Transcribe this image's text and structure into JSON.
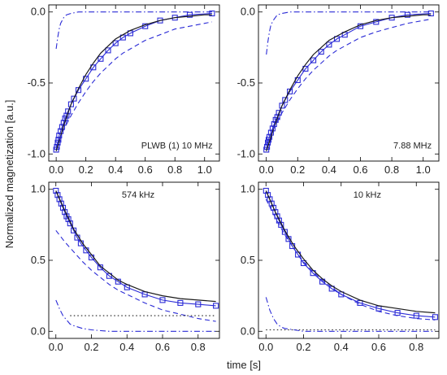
{
  "figure": {
    "ylabel": "Normalized magnetization [a.u.]",
    "xlabel": "time [s]",
    "colors": {
      "data": "#2b2bd6",
      "model": "#1a1a1a",
      "frame": "#000000"
    }
  },
  "chart_data": [
    {
      "type": "line",
      "annotation": "PLWB (1)  10 MHz",
      "xlim": [
        -0.05,
        1.1
      ],
      "ylim": [
        -1.05,
        0.05
      ],
      "xticks": [
        0.0,
        0.2,
        0.4,
        0.6,
        0.8,
        1.0
      ],
      "yticks": [
        -1.0,
        -0.5,
        0.0
      ],
      "grid": false,
      "series": [
        {
          "style": "markers-line",
          "color": "#2b2bd6",
          "x": [
            0.0,
            0.005,
            0.01,
            0.015,
            0.02,
            0.03,
            0.04,
            0.05,
            0.06,
            0.07,
            0.08,
            0.1,
            0.12,
            0.15,
            0.2,
            0.25,
            0.3,
            0.35,
            0.4,
            0.45,
            0.5,
            0.6,
            0.7,
            0.8,
            0.9,
            1.05
          ],
          "y": [
            -0.97,
            -0.95,
            -0.92,
            -0.9,
            -0.87,
            -0.84,
            -0.81,
            -0.78,
            -0.75,
            -0.73,
            -0.7,
            -0.65,
            -0.61,
            -0.55,
            -0.47,
            -0.39,
            -0.33,
            -0.27,
            -0.22,
            -0.18,
            -0.15,
            -0.1,
            -0.06,
            -0.04,
            -0.02,
            -0.01
          ]
        },
        {
          "style": "solid",
          "color": "#1a1a1a",
          "x": [
            0.0,
            0.05,
            0.1,
            0.15,
            0.2,
            0.25,
            0.3,
            0.35,
            0.4,
            0.45,
            0.5,
            0.6,
            0.7,
            0.8,
            0.9,
            1.0,
            1.05
          ],
          "y": [
            -0.98,
            -0.8,
            -0.65,
            -0.54,
            -0.44,
            -0.36,
            -0.29,
            -0.24,
            -0.19,
            -0.16,
            -0.13,
            -0.09,
            -0.06,
            -0.04,
            -0.03,
            -0.02,
            -0.02
          ]
        },
        {
          "style": "dashed",
          "color": "#2b2bd6",
          "x": [
            0.0,
            0.05,
            0.1,
            0.15,
            0.2,
            0.25,
            0.3,
            0.35,
            0.4,
            0.45,
            0.5,
            0.6,
            0.7,
            0.8,
            0.9,
            1.0,
            1.05
          ],
          "y": [
            -0.95,
            -0.83,
            -0.73,
            -0.64,
            -0.56,
            -0.49,
            -0.43,
            -0.38,
            -0.33,
            -0.29,
            -0.26,
            -0.2,
            -0.16,
            -0.12,
            -0.1,
            -0.08,
            -0.07
          ]
        },
        {
          "style": "dashdot",
          "color": "#2b2bd6",
          "x": [
            0.0,
            0.01,
            0.02,
            0.03,
            0.05,
            0.07,
            0.1,
            0.15,
            0.2,
            0.3,
            0.5,
            0.7,
            0.9,
            1.05
          ],
          "y": [
            -0.26,
            -0.18,
            -0.12,
            -0.08,
            -0.04,
            -0.02,
            -0.01,
            0.0,
            0.0,
            0.0,
            0.0,
            0.0,
            0.0,
            0.0
          ]
        }
      ]
    },
    {
      "type": "line",
      "annotation": "7.88 MHz",
      "xlim": [
        -0.05,
        1.1
      ],
      "ylim": [
        -1.05,
        0.05
      ],
      "xticks": [
        0.0,
        0.2,
        0.4,
        0.6,
        0.8,
        1.0
      ],
      "yticks": [
        -1.0,
        -0.5,
        0.0
      ],
      "grid": false,
      "series": [
        {
          "style": "markers-line",
          "color": "#2b2bd6",
          "x": [
            0.0,
            0.005,
            0.01,
            0.015,
            0.02,
            0.03,
            0.04,
            0.05,
            0.06,
            0.07,
            0.08,
            0.1,
            0.12,
            0.15,
            0.2,
            0.25,
            0.3,
            0.35,
            0.4,
            0.45,
            0.5,
            0.6,
            0.7,
            0.8,
            0.9,
            1.05
          ],
          "y": [
            -0.97,
            -0.95,
            -0.92,
            -0.9,
            -0.88,
            -0.85,
            -0.82,
            -0.79,
            -0.76,
            -0.74,
            -0.71,
            -0.66,
            -0.62,
            -0.56,
            -0.48,
            -0.4,
            -0.34,
            -0.28,
            -0.23,
            -0.19,
            -0.16,
            -0.1,
            -0.07,
            -0.04,
            -0.02,
            -0.01
          ]
        },
        {
          "style": "solid",
          "color": "#1a1a1a",
          "x": [
            0.0,
            0.05,
            0.1,
            0.15,
            0.2,
            0.25,
            0.3,
            0.35,
            0.4,
            0.45,
            0.5,
            0.6,
            0.7,
            0.8,
            0.9,
            1.0,
            1.05
          ],
          "y": [
            -0.98,
            -0.81,
            -0.66,
            -0.55,
            -0.45,
            -0.37,
            -0.3,
            -0.25,
            -0.2,
            -0.17,
            -0.14,
            -0.09,
            -0.06,
            -0.04,
            -0.03,
            -0.02,
            -0.02
          ]
        },
        {
          "style": "dashed",
          "color": "#2b2bd6",
          "x": [
            0.0,
            0.05,
            0.1,
            0.15,
            0.2,
            0.25,
            0.3,
            0.35,
            0.4,
            0.45,
            0.5,
            0.6,
            0.7,
            0.8,
            0.9,
            1.0,
            1.05
          ],
          "y": [
            -0.93,
            -0.81,
            -0.71,
            -0.62,
            -0.54,
            -0.47,
            -0.41,
            -0.36,
            -0.31,
            -0.27,
            -0.24,
            -0.18,
            -0.14,
            -0.11,
            -0.08,
            -0.06,
            -0.05
          ]
        },
        {
          "style": "dashdot",
          "color": "#2b2bd6",
          "x": [
            0.0,
            0.01,
            0.02,
            0.03,
            0.05,
            0.07,
            0.1,
            0.15,
            0.2,
            0.3,
            0.5,
            0.7,
            0.9,
            1.05
          ],
          "y": [
            -0.3,
            -0.21,
            -0.14,
            -0.09,
            -0.05,
            -0.02,
            -0.01,
            0.0,
            0.0,
            0.0,
            0.0,
            0.0,
            0.0,
            0.0
          ]
        }
      ]
    },
    {
      "type": "line",
      "annotation": "574 kHz",
      "xlim": [
        -0.04,
        0.92
      ],
      "ylim": [
        -0.05,
        1.05
      ],
      "xticks": [
        0.0,
        0.2,
        0.4,
        0.6,
        0.8
      ],
      "yticks": [
        0.0,
        0.5,
        1.0
      ],
      "grid": false,
      "series": [
        {
          "style": "markers-line",
          "color": "#2b2bd6",
          "x": [
            0.0,
            0.01,
            0.02,
            0.03,
            0.04,
            0.05,
            0.06,
            0.07,
            0.08,
            0.1,
            0.12,
            0.14,
            0.17,
            0.2,
            0.25,
            0.3,
            0.35,
            0.4,
            0.5,
            0.6,
            0.7,
            0.8,
            0.9
          ],
          "y": [
            0.99,
            0.96,
            0.93,
            0.9,
            0.87,
            0.84,
            0.81,
            0.79,
            0.76,
            0.71,
            0.66,
            0.62,
            0.57,
            0.52,
            0.45,
            0.39,
            0.35,
            0.31,
            0.26,
            0.22,
            0.2,
            0.19,
            0.18
          ]
        },
        {
          "style": "solid",
          "color": "#1a1a1a",
          "x": [
            0.0,
            0.05,
            0.1,
            0.15,
            0.2,
            0.25,
            0.3,
            0.35,
            0.4,
            0.5,
            0.6,
            0.7,
            0.8,
            0.9
          ],
          "y": [
            0.99,
            0.85,
            0.72,
            0.62,
            0.54,
            0.46,
            0.41,
            0.36,
            0.33,
            0.28,
            0.25,
            0.23,
            0.22,
            0.21
          ]
        },
        {
          "style": "dashed",
          "color": "#2b2bd6",
          "x": [
            0.0,
            0.05,
            0.1,
            0.15,
            0.2,
            0.25,
            0.3,
            0.35,
            0.4,
            0.5,
            0.6,
            0.7,
            0.8,
            0.9
          ],
          "y": [
            0.71,
            0.63,
            0.56,
            0.49,
            0.43,
            0.38,
            0.33,
            0.29,
            0.26,
            0.2,
            0.15,
            0.12,
            0.09,
            0.07
          ]
        },
        {
          "style": "dotted",
          "color": "#1a1a1a",
          "x": [
            0.08,
            0.2,
            0.4,
            0.6,
            0.8,
            0.9
          ],
          "y": [
            0.11,
            0.11,
            0.11,
            0.11,
            0.11,
            0.11
          ]
        },
        {
          "style": "dashdot",
          "color": "#2b2bd6",
          "x": [
            0.0,
            0.02,
            0.04,
            0.06,
            0.08,
            0.1,
            0.15,
            0.2,
            0.3,
            0.5,
            0.7,
            0.9
          ],
          "y": [
            0.22,
            0.16,
            0.11,
            0.08,
            0.05,
            0.04,
            0.02,
            0.01,
            0.0,
            0.0,
            0.0,
            0.0
          ]
        }
      ]
    },
    {
      "type": "line",
      "annotation": "10 kHz",
      "xlim": [
        -0.04,
        0.92
      ],
      "ylim": [
        -0.05,
        1.05
      ],
      "xticks": [
        0.0,
        0.2,
        0.4,
        0.6,
        0.8
      ],
      "yticks": [
        0.0,
        0.5,
        1.0
      ],
      "grid": false,
      "series": [
        {
          "style": "markers-line",
          "color": "#2b2bd6",
          "x": [
            0.0,
            0.01,
            0.02,
            0.03,
            0.04,
            0.05,
            0.06,
            0.07,
            0.08,
            0.1,
            0.12,
            0.14,
            0.17,
            0.2,
            0.25,
            0.3,
            0.35,
            0.4,
            0.5,
            0.6,
            0.7,
            0.8,
            0.9
          ],
          "y": [
            0.99,
            0.96,
            0.93,
            0.9,
            0.87,
            0.84,
            0.81,
            0.78,
            0.75,
            0.7,
            0.65,
            0.6,
            0.54,
            0.48,
            0.41,
            0.35,
            0.3,
            0.26,
            0.2,
            0.16,
            0.13,
            0.11,
            0.1
          ]
        },
        {
          "style": "solid",
          "color": "#1a1a1a",
          "x": [
            0.0,
            0.05,
            0.1,
            0.15,
            0.2,
            0.25,
            0.3,
            0.35,
            0.4,
            0.5,
            0.6,
            0.7,
            0.8,
            0.9
          ],
          "y": [
            0.99,
            0.84,
            0.71,
            0.6,
            0.51,
            0.43,
            0.37,
            0.32,
            0.28,
            0.22,
            0.18,
            0.16,
            0.14,
            0.13
          ]
        },
        {
          "style": "dashed",
          "color": "#2b2bd6",
          "x": [
            0.0,
            0.05,
            0.1,
            0.15,
            0.2,
            0.25,
            0.3,
            0.35,
            0.4,
            0.5,
            0.6,
            0.7,
            0.8,
            0.9
          ],
          "y": [
            0.93,
            0.8,
            0.68,
            0.58,
            0.49,
            0.42,
            0.36,
            0.31,
            0.26,
            0.19,
            0.14,
            0.11,
            0.09,
            0.08
          ]
        },
        {
          "style": "dotted",
          "color": "#1a1a1a",
          "x": [
            0.0,
            0.2,
            0.4,
            0.6,
            0.8,
            0.9
          ],
          "y": [
            0.01,
            0.01,
            0.01,
            0.01,
            0.01,
            0.01
          ]
        },
        {
          "style": "dashdot",
          "color": "#2b2bd6",
          "x": [
            0.0,
            0.02,
            0.04,
            0.06,
            0.08,
            0.1,
            0.15,
            0.2,
            0.3,
            0.5,
            0.7,
            0.9
          ],
          "y": [
            0.24,
            0.15,
            0.09,
            0.05,
            0.03,
            0.02,
            0.01,
            0.0,
            0.0,
            0.0,
            0.0,
            0.0
          ]
        }
      ]
    }
  ]
}
